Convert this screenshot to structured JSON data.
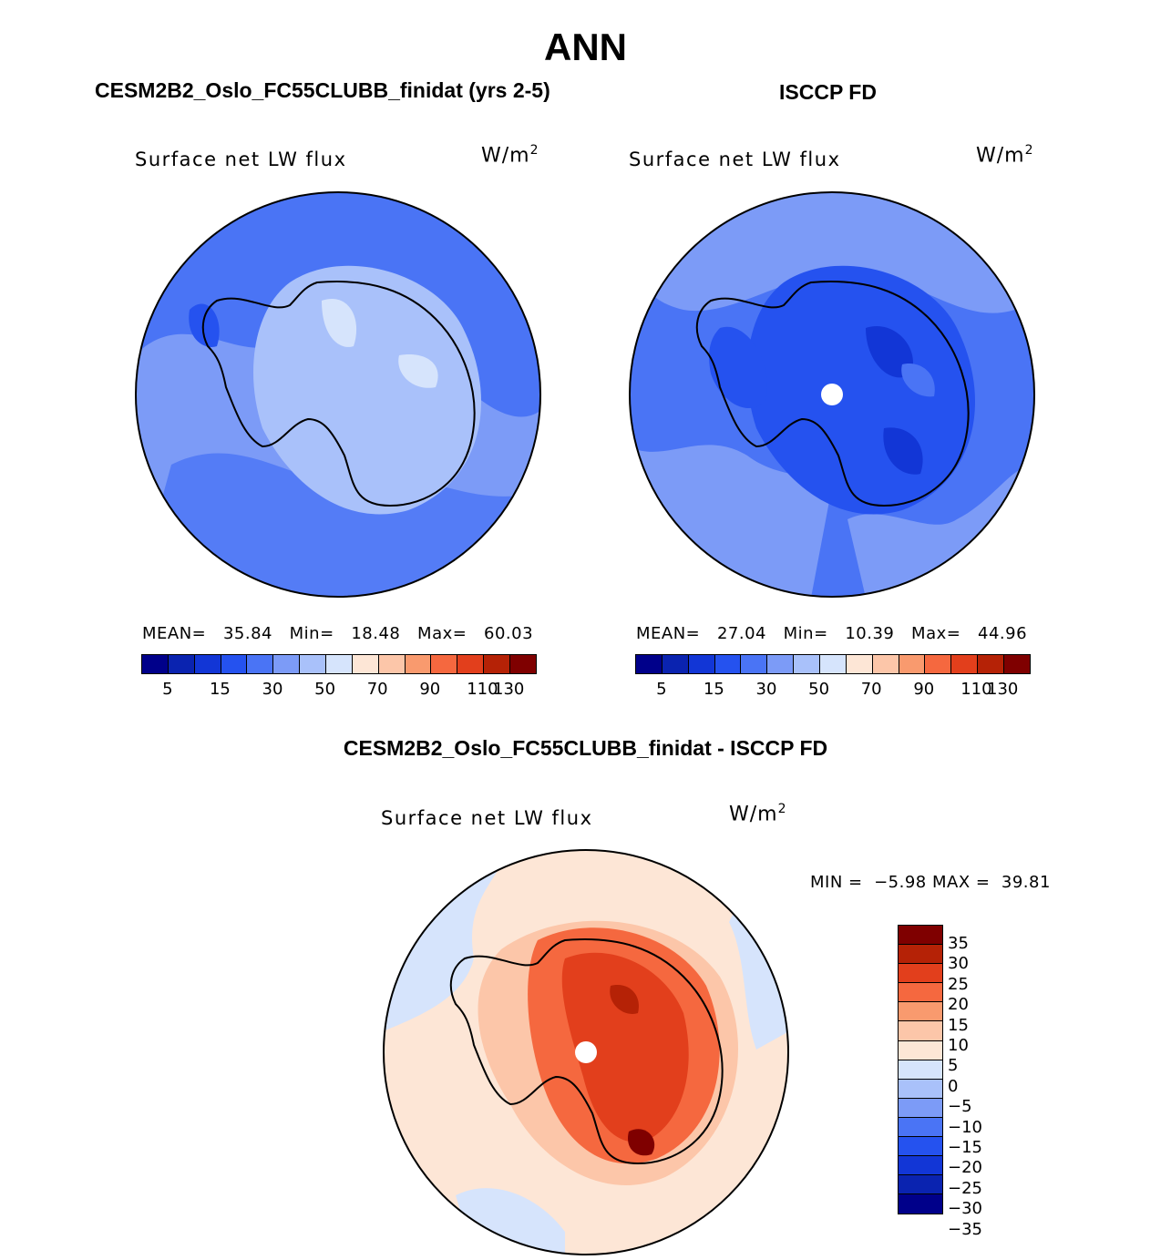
{
  "main_title": "ANN",
  "variable": "Surface net LW flux",
  "units_base": "W/m",
  "units_exp": "2",
  "panels": {
    "model": {
      "title": "CESM2B2_Oslo_FC55CLUBB_finidat (yrs 2-5)",
      "mean_label": "MEAN=",
      "mean": "35.84",
      "min_label": "Min=",
      "min": "18.48",
      "max_label": "Max=",
      "max": "60.03"
    },
    "obs": {
      "title": "ISCCP FD",
      "mean_label": "MEAN=",
      "mean": "27.04",
      "min_label": "Min=",
      "min": "10.39",
      "max_label": "Max=",
      "max": "44.96"
    },
    "diff": {
      "title": "CESM2B2_Oslo_FC55CLUBB_finidat - ISCCP FD",
      "min_label": "MIN =",
      "min": "−5.98",
      "max_label": "MAX =",
      "max": "39.81"
    }
  },
  "colorbar_abs": {
    "ticks": [
      "5",
      "15",
      "30",
      "50",
      "70",
      "90",
      "110",
      "130"
    ],
    "colors": [
      "#00008a",
      "#0a23b0",
      "#1236d6",
      "#2552ef",
      "#4a74f5",
      "#7c9bf7",
      "#a9c1fa",
      "#d6e4fc",
      "#fde6d6",
      "#fcc6a9",
      "#f99a6e",
      "#f5683f",
      "#e23f1c",
      "#b52206",
      "#7f0000"
    ]
  },
  "colorbar_diff": {
    "ticks": [
      "35",
      "30",
      "25",
      "20",
      "15",
      "10",
      "5",
      "0",
      "−5",
      "−10",
      "−15",
      "−20",
      "−25",
      "−30",
      "−35"
    ],
    "colors": [
      "#7f0000",
      "#b52206",
      "#e23f1c",
      "#f5683f",
      "#f99a6e",
      "#fcc6a9",
      "#fde6d6",
      "#d6e4fc",
      "#a9c1fa",
      "#7c9bf7",
      "#4a74f5",
      "#2552ef",
      "#1236d6",
      "#0a23b0",
      "#00008a"
    ]
  }
}
